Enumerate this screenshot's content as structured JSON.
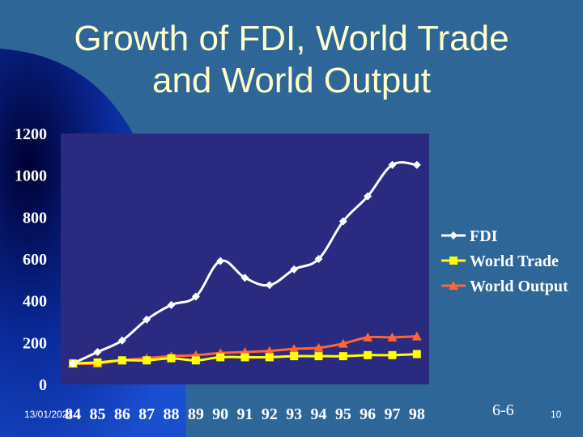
{
  "slide": {
    "title_line1": "Growth of FDI, World Trade",
    "title_line2": "and World Output",
    "footer_date": "13/01/2022",
    "footer_code": "6-6",
    "page_number": "10"
  },
  "colors": {
    "background": "#2e6698",
    "plot_area": "#2a2a80",
    "title_text": "#ffffcc",
    "fdi": "#ffffff",
    "world_trade": "#ffff00",
    "world_output": "#ff6633"
  },
  "chart_data": {
    "type": "line",
    "title": "",
    "xlabel": "",
    "ylabel": "",
    "ylim": [
      0,
      1200
    ],
    "yticks": [
      "0",
      "200",
      "400",
      "600",
      "800",
      "1000",
      "1200"
    ],
    "categories": [
      "84",
      "85",
      "86",
      "87",
      "88",
      "89",
      "90",
      "91",
      "92",
      "93",
      "94",
      "95",
      "96",
      "97",
      "98"
    ],
    "grid": false,
    "legend_position": "right",
    "series": [
      {
        "name": "FDI",
        "color": "#ffffff",
        "marker": "diamond",
        "values": [
          100,
          155,
          210,
          310,
          380,
          420,
          590,
          510,
          475,
          550,
          600,
          780,
          900,
          1050,
          1050
        ]
      },
      {
        "name": "World Trade",
        "color": "#ffff00",
        "marker": "square",
        "values": [
          100,
          105,
          115,
          115,
          125,
          115,
          130,
          130,
          130,
          135,
          135,
          135,
          140,
          140,
          145
        ]
      },
      {
        "name": "World Output",
        "color": "#ff6633",
        "marker": "triangle",
        "values": [
          100,
          100,
          115,
          125,
          135,
          140,
          150,
          155,
          160,
          170,
          175,
          195,
          225,
          225,
          230
        ]
      }
    ]
  }
}
